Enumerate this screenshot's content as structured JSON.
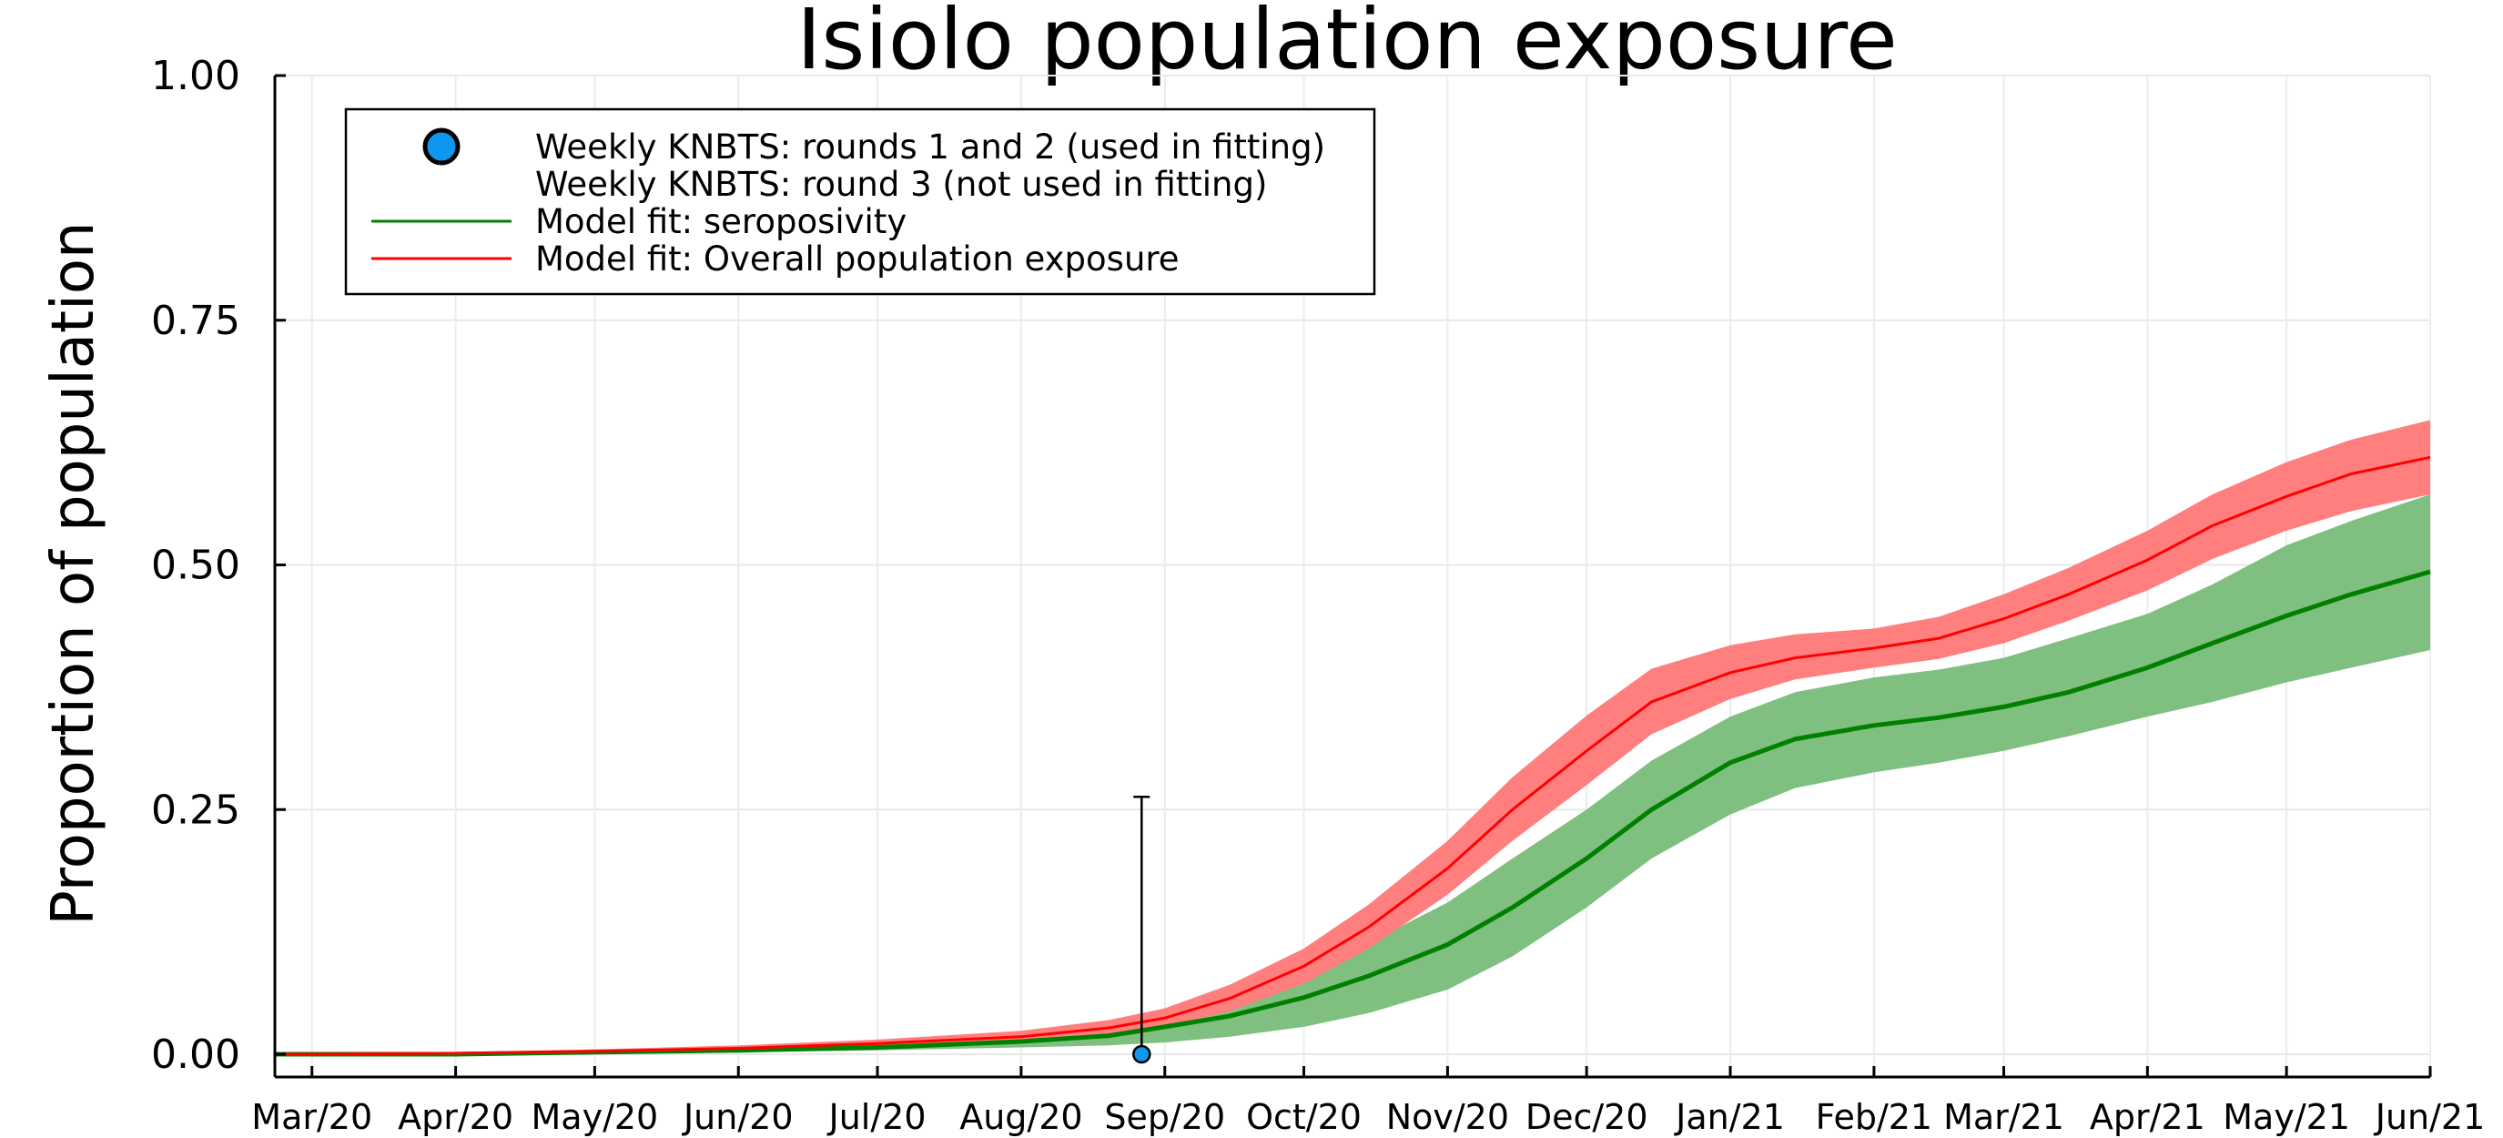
{
  "chart_data": {
    "type": "line",
    "title": "Isiolo population exposure",
    "xlabel": "",
    "ylabel": "Proportion of population",
    "ylim": [
      0,
      1
    ],
    "yticks": [
      0.0,
      0.25,
      0.5,
      0.75,
      1.0
    ],
    "ytick_labels": [
      "0.00",
      "0.25",
      "0.50",
      "0.75",
      "1.00"
    ],
    "x_range": [
      "2020-02-22",
      "2021-06-01"
    ],
    "xticks": [
      "2020-03-01",
      "2020-04-01",
      "2020-05-01",
      "2020-06-01",
      "2020-07-01",
      "2020-08-01",
      "2020-09-01",
      "2020-10-01",
      "2020-11-01",
      "2020-12-01",
      "2021-01-01",
      "2021-02-01",
      "2021-03-01",
      "2021-04-01",
      "2021-05-01",
      "2021-06-01"
    ],
    "xtick_labels": [
      "Mar/20",
      "Apr/20",
      "May/20",
      "Jun/20",
      "Jul/20",
      "Aug/20",
      "Sep/20",
      "Oct/20",
      "Nov/20",
      "Dec/20",
      "Jan/21",
      "Feb/21",
      "Mar/21",
      "Apr/21",
      "May/21",
      "Jun/21"
    ],
    "grid": true,
    "legend_position": "top-left",
    "legend": [
      {
        "label": "Weekly KNBTS: rounds 1 and 2 (used in fitting)",
        "marker": "circle",
        "color": "#0f97f0"
      },
      {
        "label": "Weekly KNBTS: round 3 (not used in fitting)",
        "marker": "none",
        "color": ""
      },
      {
        "label": "Model fit: seroposivity",
        "marker": "line",
        "color": "#008000"
      },
      {
        "label": "Model fit: Overall population exposure",
        "marker": "line",
        "color": "#ff0000"
      }
    ],
    "series": [
      {
        "name": "Model fit: seroposivity",
        "color": "#008000",
        "band_color": "#7fbf7f",
        "x": [
          "2020-02-22",
          "2020-03-01",
          "2020-04-01",
          "2020-05-01",
          "2020-06-01",
          "2020-07-01",
          "2020-08-01",
          "2020-08-20",
          "2020-09-01",
          "2020-09-15",
          "2020-10-01",
          "2020-10-15",
          "2020-11-01",
          "2020-11-15",
          "2020-12-01",
          "2020-12-15",
          "2021-01-01",
          "2021-01-15",
          "2021-02-01",
          "2021-02-15",
          "2021-03-01",
          "2021-03-15",
          "2021-04-01",
          "2021-04-15",
          "2021-05-01",
          "2021-05-15",
          "2021-06-01"
        ],
        "mean": [
          0.0,
          0.0,
          0.0,
          0.002,
          0.004,
          0.007,
          0.013,
          0.019,
          0.028,
          0.039,
          0.058,
          0.08,
          0.112,
          0.15,
          0.2,
          0.25,
          0.298,
          0.322,
          0.336,
          0.344,
          0.355,
          0.37,
          0.395,
          0.42,
          0.448,
          0.47,
          0.493
        ],
        "lower": [
          0.0,
          0.0,
          0.0,
          0.001,
          0.002,
          0.004,
          0.007,
          0.009,
          0.012,
          0.018,
          0.028,
          0.042,
          0.066,
          0.1,
          0.15,
          0.2,
          0.245,
          0.272,
          0.288,
          0.298,
          0.31,
          0.325,
          0.345,
          0.36,
          0.38,
          0.395,
          0.413
        ],
        "upper": [
          0.001,
          0.001,
          0.001,
          0.003,
          0.006,
          0.011,
          0.019,
          0.029,
          0.04,
          0.058,
          0.083,
          0.114,
          0.155,
          0.2,
          0.25,
          0.3,
          0.345,
          0.37,
          0.385,
          0.393,
          0.405,
          0.425,
          0.45,
          0.48,
          0.52,
          0.545,
          0.572
        ]
      },
      {
        "name": "Model fit: Overall population exposure",
        "color": "#ff0000",
        "band_color": "#ff7f7f",
        "x": [
          "2020-02-22",
          "2020-03-01",
          "2020-04-01",
          "2020-05-01",
          "2020-06-01",
          "2020-07-01",
          "2020-08-01",
          "2020-08-20",
          "2020-09-01",
          "2020-09-15",
          "2020-10-01",
          "2020-10-15",
          "2020-11-01",
          "2020-11-15",
          "2020-12-01",
          "2020-12-15",
          "2021-01-01",
          "2021-01-15",
          "2021-02-01",
          "2021-02-15",
          "2021-03-01",
          "2021-03-15",
          "2021-04-01",
          "2021-04-15",
          "2021-05-01",
          "2021-05-15",
          "2021-06-01"
        ],
        "mean": [
          0.0,
          0.0,
          0.001,
          0.003,
          0.006,
          0.011,
          0.018,
          0.027,
          0.037,
          0.057,
          0.09,
          0.13,
          0.19,
          0.25,
          0.31,
          0.36,
          0.39,
          0.405,
          0.415,
          0.425,
          0.445,
          0.47,
          0.505,
          0.54,
          0.57,
          0.593,
          0.61
        ],
        "lower": [
          0.0,
          0.0,
          0.0,
          0.002,
          0.004,
          0.008,
          0.014,
          0.02,
          0.028,
          0.044,
          0.072,
          0.108,
          0.163,
          0.218,
          0.275,
          0.327,
          0.363,
          0.383,
          0.395,
          0.404,
          0.42,
          0.443,
          0.474,
          0.506,
          0.535,
          0.555,
          0.572
        ],
        "upper": [
          0.001,
          0.001,
          0.002,
          0.005,
          0.009,
          0.015,
          0.024,
          0.035,
          0.047,
          0.071,
          0.108,
          0.153,
          0.218,
          0.283,
          0.346,
          0.394,
          0.418,
          0.429,
          0.435,
          0.447,
          0.47,
          0.497,
          0.535,
          0.572,
          0.605,
          0.628,
          0.648
        ]
      }
    ],
    "points": [
      {
        "name": "Weekly KNBTS: rounds 1 and 2 (used in fitting)",
        "x": "2020-08-27",
        "y": 0.0,
        "err_low": 0.0,
        "err_high": 0.263,
        "color": "#0f97f0"
      }
    ]
  }
}
